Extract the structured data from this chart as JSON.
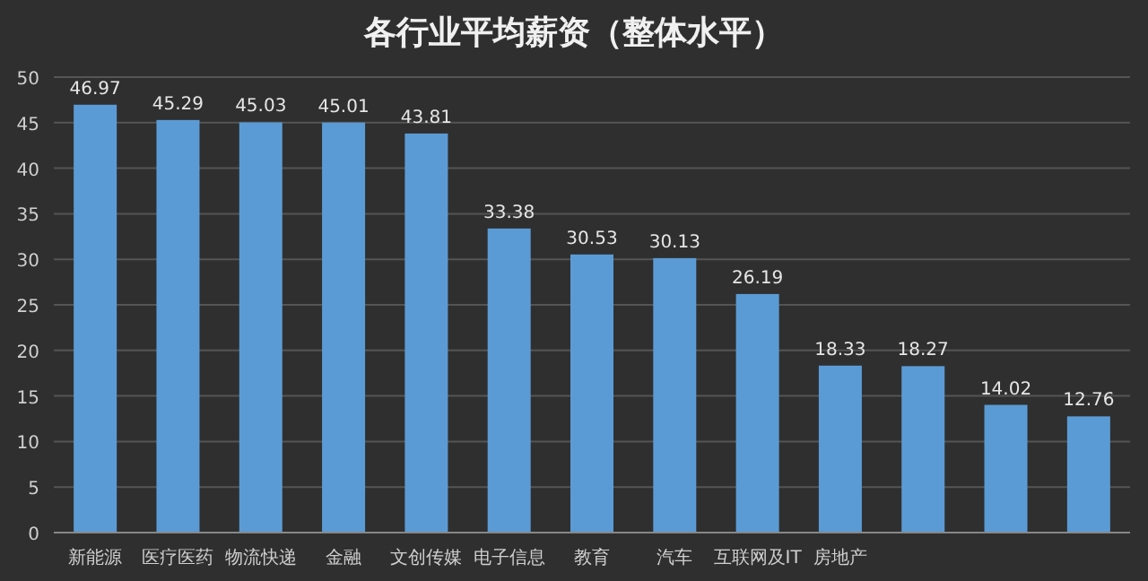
{
  "chart_data": {
    "type": "bar",
    "title": "各行业平均薪资（整体水平）",
    "categories": [
      "新能源",
      "医疗医药",
      "物流快递",
      "金融",
      "文创传媒",
      "电子信息",
      "教育",
      "汽车",
      "互联网及IT",
      "房地产",
      null,
      null,
      null
    ],
    "values": [
      46.97,
      45.29,
      45.03,
      45.01,
      43.81,
      33.38,
      30.53,
      30.13,
      26.19,
      18.33,
      18.27,
      14.02,
      12.76
    ],
    "color": "#5b9bd5",
    "ylim": [
      0,
      50
    ],
    "yticks": [
      0,
      5,
      10,
      15,
      20,
      25,
      30,
      35,
      40,
      45,
      50
    ],
    "grid": "y",
    "data_labels": true
  }
}
